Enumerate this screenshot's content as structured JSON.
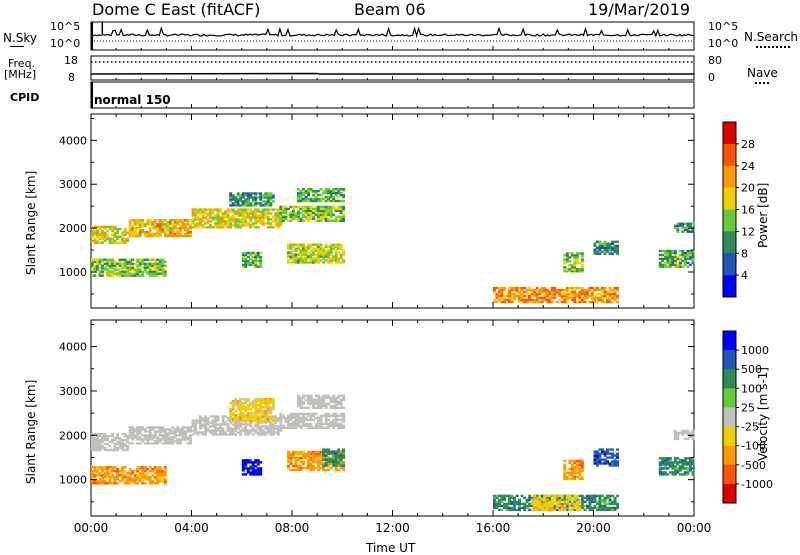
{
  "header": {
    "station": "Dome C East (fitACF)",
    "beam": "Beam 06",
    "date": "19/Mar/2019"
  },
  "aux_panels": {
    "nsky_label": "N.Sky",
    "nsky_ticks": [
      "10^5",
      "10^0"
    ],
    "nsearch_label": "N.Search",
    "nsearch_ticks": [
      "10^5",
      "10^0"
    ],
    "freq_label": "Freq.",
    "freq_unit": "[MHz]",
    "freq_ticks": [
      "18",
      "8"
    ],
    "nave_label": "Nave",
    "nave_ticks": [
      "80",
      "0"
    ],
    "cpid_label": "CPID",
    "cpid_value": "normal 150"
  },
  "time_axis": {
    "label": "Time UT",
    "ticks": [
      "00:00",
      "04:00",
      "08:00",
      "12:00",
      "16:00",
      "20:00",
      "00:00"
    ],
    "range_hours": [
      0,
      24
    ]
  },
  "chart_data": [
    {
      "type": "heatmap",
      "quantity": "Power",
      "ylabel": "Slant Range [km]",
      "yticks": [
        "1000",
        "2000",
        "3000",
        "4000"
      ],
      "ylim": [
        180,
        4600
      ],
      "colorbar": {
        "label": "Power [dB]",
        "ticks": [
          "4",
          "8",
          "12",
          "16",
          "20",
          "24",
          "28"
        ],
        "range": [
          0,
          32
        ],
        "colors": [
          "#0000ff",
          "#2255bb",
          "#2e8b57",
          "#66cc33",
          "#f0d000",
          "#ff9900",
          "#ff5500",
          "#dd0000"
        ]
      },
      "regions": [
        {
          "t": [
            0.0,
            1.5
          ],
          "r": [
            1650,
            2050
          ],
          "level": 18
        },
        {
          "t": [
            1.5,
            4.0
          ],
          "r": [
            1800,
            2200
          ],
          "level": 20
        },
        {
          "t": [
            4.0,
            7.5
          ],
          "r": [
            2000,
            2450
          ],
          "level": 18
        },
        {
          "t": [
            7.5,
            10.0
          ],
          "r": [
            2150,
            2500
          ],
          "level": 14
        },
        {
          "t": [
            5.5,
            7.2
          ],
          "r": [
            2500,
            2800
          ],
          "level": 10
        },
        {
          "t": [
            8.2,
            10.0
          ],
          "r": [
            2600,
            2900
          ],
          "level": 12
        },
        {
          "t": [
            0.0,
            3.0
          ],
          "r": [
            900,
            1300
          ],
          "level": 14
        },
        {
          "t": [
            7.8,
            10.0
          ],
          "r": [
            1200,
            1650
          ],
          "level": 16
        },
        {
          "t": [
            6.0,
            6.7
          ],
          "r": [
            1100,
            1450
          ],
          "level": 12
        },
        {
          "t": [
            16.0,
            21.0
          ],
          "r": [
            300,
            650
          ],
          "level": 22
        },
        {
          "t": [
            18.8,
            19.6
          ],
          "r": [
            1000,
            1450
          ],
          "level": 14
        },
        {
          "t": [
            20.0,
            21.0
          ],
          "r": [
            1400,
            1700
          ],
          "level": 10
        },
        {
          "t": [
            22.6,
            24.0
          ],
          "r": [
            1100,
            1500
          ],
          "level": 12
        },
        {
          "t": [
            23.2,
            24.0
          ],
          "r": [
            1900,
            2100
          ],
          "level": 10
        }
      ]
    },
    {
      "type": "heatmap",
      "quantity": "Velocity",
      "ylabel": "Slant Range [km]",
      "yticks": [
        "1000",
        "2000",
        "3000",
        "4000"
      ],
      "ylim": [
        180,
        4600
      ],
      "colorbar": {
        "label": "Velocity [m s-1]",
        "ticks": [
          "1000",
          "500",
          "100",
          "25",
          "-25",
          "-100",
          "-500",
          "-1000"
        ],
        "colors": [
          "#0000ff",
          "#2255bb",
          "#2e8b57",
          "#66cc33",
          "#c0c0bc",
          "#f0d000",
          "#ff9900",
          "#ff5500",
          "#dd0000"
        ]
      },
      "regions": [
        {
          "t": [
            0.0,
            1.5
          ],
          "r": [
            1650,
            2050
          ],
          "v": "ground"
        },
        {
          "t": [
            1.5,
            4.0
          ],
          "r": [
            1800,
            2200
          ],
          "v": "ground"
        },
        {
          "t": [
            4.0,
            7.5
          ],
          "r": [
            2000,
            2450
          ],
          "v": "ground"
        },
        {
          "t": [
            7.5,
            10.0
          ],
          "r": [
            2150,
            2500
          ],
          "v": "ground"
        },
        {
          "t": [
            8.2,
            10.0
          ],
          "r": [
            2600,
            2900
          ],
          "v": "ground"
        },
        {
          "t": [
            5.5,
            7.2
          ],
          "r": [
            2300,
            2800
          ],
          "v": "-100"
        },
        {
          "t": [
            0.0,
            3.0
          ],
          "r": [
            900,
            1300
          ],
          "v": "-500"
        },
        {
          "t": [
            7.8,
            10.0
          ],
          "r": [
            1200,
            1650
          ],
          "v": "-500"
        },
        {
          "t": [
            9.2,
            10.0
          ],
          "r": [
            1300,
            1700
          ],
          "v": "100"
        },
        {
          "t": [
            6.0,
            6.7
          ],
          "r": [
            1100,
            1450
          ],
          "v": "1000"
        },
        {
          "t": [
            16.0,
            21.0
          ],
          "r": [
            300,
            650
          ],
          "v": "100"
        },
        {
          "t": [
            17.5,
            19.5
          ],
          "r": [
            300,
            650
          ],
          "v": "-100"
        },
        {
          "t": [
            18.8,
            19.6
          ],
          "r": [
            1000,
            1450
          ],
          "v": "-500"
        },
        {
          "t": [
            20.0,
            21.0
          ],
          "r": [
            1300,
            1700
          ],
          "v": "500"
        },
        {
          "t": [
            22.6,
            24.0
          ],
          "r": [
            1100,
            1500
          ],
          "v": "100"
        },
        {
          "t": [
            23.2,
            24.0
          ],
          "r": [
            1900,
            2100
          ],
          "v": "ground"
        }
      ]
    }
  ]
}
